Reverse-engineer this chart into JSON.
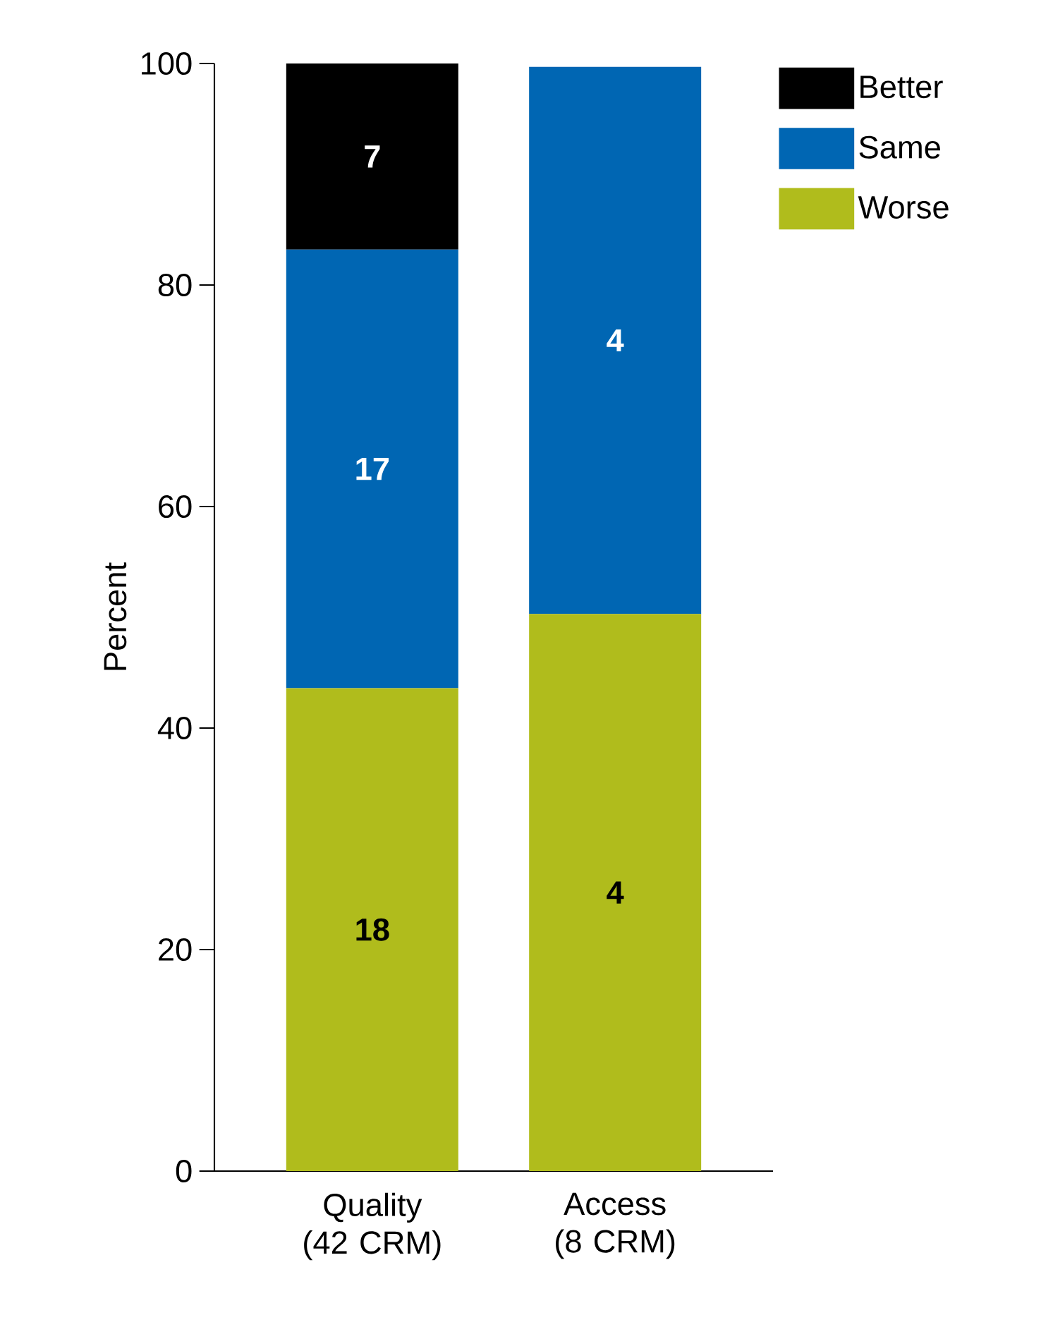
{
  "chart_data": {
    "type": "bar",
    "stacked": true,
    "ylabel": "Percent",
    "categories": [
      "Quality (42 CRM)",
      "Access (8 CRM)"
    ],
    "series": [
      {
        "name": "Worse",
        "color": "#b0bc1c",
        "values": [
          43.6,
          50.3
        ]
      },
      {
        "name": "Same",
        "color": "#0066b3",
        "values": [
          39.6,
          49.4
        ]
      },
      {
        "name": "Better",
        "color": "#000000",
        "values": [
          16.8,
          null
        ]
      }
    ],
    "annotations": [
      "18",
      "17",
      "7",
      "4",
      "4"
    ],
    "ylim": [
      0,
      100
    ],
    "yticks": [
      0,
      20,
      40,
      60,
      80,
      100
    ],
    "grid": false,
    "legend": "top right"
  }
}
